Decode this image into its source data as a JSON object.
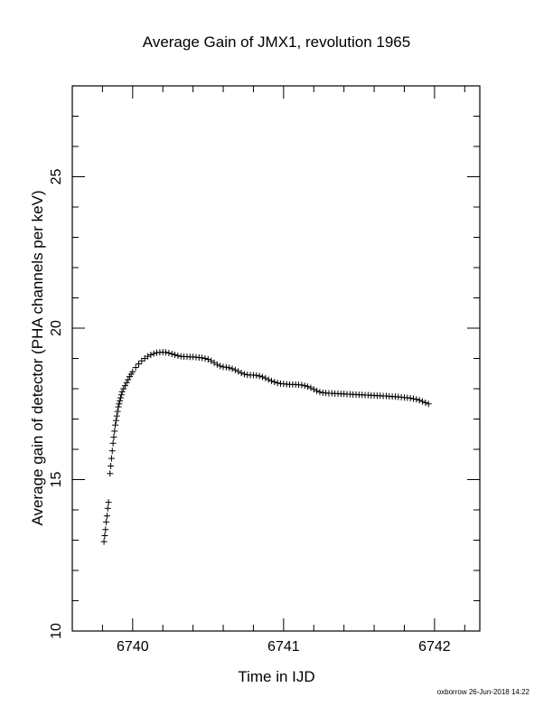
{
  "chart_data": {
    "type": "scatter",
    "title": "Average Gain of JMX1, revolution 1965",
    "xlabel": "Time in IJD",
    "ylabel": "Average gain of detector (PHA channels per keV)",
    "xlim": [
      6739.6,
      6742.3
    ],
    "ylim": [
      10,
      28
    ],
    "x_ticks": [
      6740,
      6741,
      6742
    ],
    "x_minor_ticks": [
      6739.8,
      6740.2,
      6740.4,
      6740.6,
      6740.8,
      6741.2,
      6741.4,
      6741.6,
      6741.8,
      6742.2
    ],
    "y_ticks": [
      10,
      15,
      20,
      25
    ],
    "y_minor_ticks": [
      11,
      12,
      13,
      14,
      16,
      17,
      18,
      19,
      21,
      22,
      23,
      24,
      26,
      27
    ],
    "grid": false,
    "marker": "plus",
    "series": [
      {
        "points": [
          [
            6739.81,
            12.95
          ],
          [
            6739.815,
            13.15
          ],
          [
            6739.82,
            13.35
          ],
          [
            6739.825,
            13.6
          ],
          [
            6739.83,
            13.8
          ],
          [
            6739.835,
            14.05
          ],
          [
            6739.84,
            14.25
          ],
          [
            6739.85,
            15.2
          ],
          [
            6739.855,
            15.45
          ],
          [
            6739.86,
            15.7
          ],
          [
            6739.865,
            15.95
          ],
          [
            6739.87,
            16.2
          ],
          [
            6739.875,
            16.4
          ],
          [
            6739.88,
            16.6
          ],
          [
            6739.885,
            16.8
          ],
          [
            6739.89,
            16.95
          ],
          [
            6739.895,
            17.1
          ],
          [
            6739.9,
            17.25
          ],
          [
            6739.905,
            17.4
          ],
          [
            6739.91,
            17.5
          ],
          [
            6739.915,
            17.6
          ],
          [
            6739.92,
            17.7
          ],
          [
            6739.925,
            17.8
          ],
          [
            6739.93,
            17.9
          ],
          [
            6739.94,
            18.0
          ],
          [
            6739.95,
            18.1
          ],
          [
            6739.96,
            18.2
          ],
          [
            6739.97,
            18.3
          ],
          [
            6739.98,
            18.4
          ],
          [
            6739.99,
            18.48
          ],
          [
            6740.0,
            18.56
          ],
          [
            6740.02,
            18.7
          ],
          [
            6740.04,
            18.82
          ],
          [
            6740.06,
            18.92
          ],
          [
            6740.08,
            19.0
          ],
          [
            6740.1,
            19.07
          ],
          [
            6740.12,
            19.12
          ],
          [
            6740.14,
            19.16
          ],
          [
            6740.16,
            19.19
          ],
          [
            6740.18,
            19.2
          ],
          [
            6740.2,
            19.21
          ],
          [
            6740.22,
            19.2
          ],
          [
            6740.24,
            19.18
          ],
          [
            6740.26,
            19.15
          ],
          [
            6740.28,
            19.12
          ],
          [
            6740.3,
            19.09
          ],
          [
            6740.32,
            19.07
          ],
          [
            6740.34,
            19.06
          ],
          [
            6740.36,
            19.06
          ],
          [
            6740.38,
            19.05
          ],
          [
            6740.4,
            19.05
          ],
          [
            6740.42,
            19.04
          ],
          [
            6740.44,
            19.03
          ],
          [
            6740.46,
            19.02
          ],
          [
            6740.48,
            19.0
          ],
          [
            6740.5,
            18.97
          ],
          [
            6740.52,
            18.92
          ],
          [
            6740.54,
            18.86
          ],
          [
            6740.56,
            18.8
          ],
          [
            6740.58,
            18.75
          ],
          [
            6740.6,
            18.72
          ],
          [
            6740.62,
            18.71
          ],
          [
            6740.64,
            18.69
          ],
          [
            6740.66,
            18.66
          ],
          [
            6740.68,
            18.62
          ],
          [
            6740.7,
            18.57
          ],
          [
            6740.72,
            18.52
          ],
          [
            6740.74,
            18.48
          ],
          [
            6740.76,
            18.46
          ],
          [
            6740.78,
            18.45
          ],
          [
            6740.8,
            18.45
          ],
          [
            6740.82,
            18.44
          ],
          [
            6740.84,
            18.42
          ],
          [
            6740.86,
            18.39
          ],
          [
            6740.88,
            18.35
          ],
          [
            6740.9,
            18.3
          ],
          [
            6740.92,
            18.26
          ],
          [
            6740.94,
            18.22
          ],
          [
            6740.96,
            18.19
          ],
          [
            6740.98,
            18.17
          ],
          [
            6741.0,
            18.16
          ],
          [
            6741.02,
            18.15
          ],
          [
            6741.04,
            18.14
          ],
          [
            6741.06,
            18.14
          ],
          [
            6741.08,
            18.14
          ],
          [
            6741.1,
            18.13
          ],
          [
            6741.12,
            18.12
          ],
          [
            6741.14,
            18.1
          ],
          [
            6741.16,
            18.07
          ],
          [
            6741.18,
            18.03
          ],
          [
            6741.2,
            17.98
          ],
          [
            6741.22,
            17.93
          ],
          [
            6741.24,
            17.89
          ],
          [
            6741.26,
            17.87
          ],
          [
            6741.28,
            17.86
          ],
          [
            6741.3,
            17.85
          ],
          [
            6741.32,
            17.85
          ],
          [
            6741.34,
            17.84
          ],
          [
            6741.36,
            17.84
          ],
          [
            6741.38,
            17.83
          ],
          [
            6741.4,
            17.83
          ],
          [
            6741.42,
            17.82
          ],
          [
            6741.44,
            17.82
          ],
          [
            6741.46,
            17.81
          ],
          [
            6741.48,
            17.81
          ],
          [
            6741.5,
            17.8
          ],
          [
            6741.52,
            17.8
          ],
          [
            6741.54,
            17.79
          ],
          [
            6741.56,
            17.79
          ],
          [
            6741.58,
            17.78
          ],
          [
            6741.6,
            17.78
          ],
          [
            6741.62,
            17.77
          ],
          [
            6741.64,
            17.77
          ],
          [
            6741.66,
            17.76
          ],
          [
            6741.68,
            17.76
          ],
          [
            6741.7,
            17.75
          ],
          [
            6741.72,
            17.74
          ],
          [
            6741.74,
            17.74
          ],
          [
            6741.76,
            17.73
          ],
          [
            6741.78,
            17.72
          ],
          [
            6741.8,
            17.71
          ],
          [
            6741.82,
            17.7
          ],
          [
            6741.84,
            17.69
          ],
          [
            6741.86,
            17.67
          ],
          [
            6741.88,
            17.65
          ],
          [
            6741.9,
            17.62
          ],
          [
            6741.92,
            17.58
          ],
          [
            6741.94,
            17.54
          ],
          [
            6741.96,
            17.5
          ]
        ]
      }
    ]
  },
  "credit": "oxborrow 26-Jun-2018 14:22"
}
